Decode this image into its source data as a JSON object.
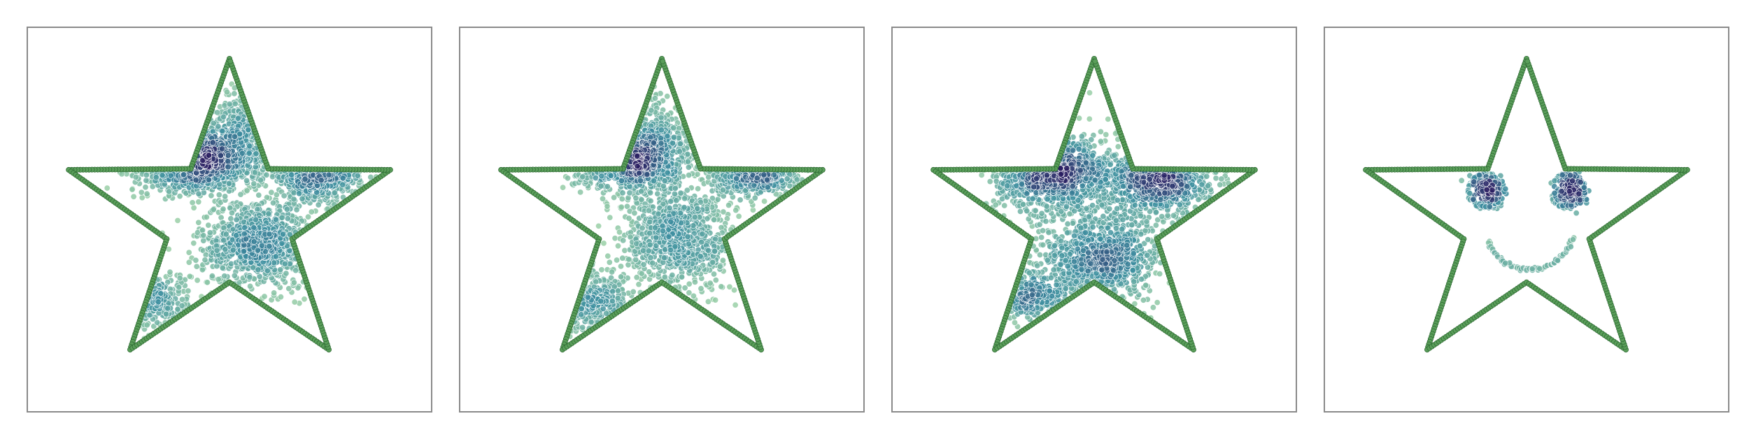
{
  "colors": {
    "outline_fill": "#5a9e5a",
    "outline_stroke": "#2f6b34",
    "frame": "#8a8a8a",
    "density_low": "#9fd3a7",
    "density_mid": "#3d8fa0",
    "density_high": "#2a1f62"
  },
  "chart_data": [
    {
      "type": "scatter",
      "title": "",
      "xlabel": "",
      "ylabel": "",
      "xlim": [
        -1.2,
        1.2
      ],
      "ylim": [
        -1.2,
        1.2
      ],
      "grid": false,
      "outline": "star",
      "clusters": [
        {
          "cx": -0.22,
          "cy": 0.38,
          "sx": 0.17,
          "sy": 0.1,
          "n": 900
        },
        {
          "cx": 0.18,
          "cy": -0.15,
          "sx": 0.18,
          "sy": 0.14,
          "n": 850
        },
        {
          "cx": 0.52,
          "cy": 0.3,
          "sx": 0.15,
          "sy": 0.09,
          "n": 450
        },
        {
          "cx": -0.48,
          "cy": -0.5,
          "sx": 0.12,
          "sy": 0.09,
          "n": 200
        },
        {
          "cx": 0.1,
          "cy": 0.55,
          "sx": 0.1,
          "sy": 0.16,
          "n": 250
        }
      ]
    },
    {
      "type": "scatter",
      "title": "",
      "xlabel": "",
      "ylabel": "",
      "xlim": [
        -1.2,
        1.2
      ],
      "ylim": [
        -1.2,
        1.2
      ],
      "grid": false,
      "outline": "star",
      "clusters": [
        {
          "cx": -0.22,
          "cy": 0.38,
          "sx": 0.15,
          "sy": 0.09,
          "n": 750
        },
        {
          "cx": 0.1,
          "cy": -0.12,
          "sx": 0.17,
          "sy": 0.17,
          "n": 850
        },
        {
          "cx": 0.55,
          "cy": 0.32,
          "sx": 0.12,
          "sy": 0.08,
          "n": 400
        },
        {
          "cx": -0.45,
          "cy": -0.5,
          "sx": 0.16,
          "sy": 0.1,
          "n": 300
        },
        {
          "cx": 0.0,
          "cy": 0.48,
          "sx": 0.14,
          "sy": 0.15,
          "n": 300
        }
      ]
    },
    {
      "type": "scatter",
      "title": "",
      "xlabel": "",
      "ylabel": "",
      "xlim": [
        -1.2,
        1.2
      ],
      "ylim": [
        -1.2,
        1.2
      ],
      "grid": false,
      "outline": "star",
      "clusters": [
        {
          "cx": -0.25,
          "cy": 0.3,
          "sx": 0.16,
          "sy": 0.1,
          "n": 700
        },
        {
          "cx": 0.4,
          "cy": 0.25,
          "sx": 0.15,
          "sy": 0.1,
          "n": 650
        },
        {
          "cx": 0.05,
          "cy": -0.25,
          "sx": 0.18,
          "sy": 0.12,
          "n": 650
        },
        {
          "cx": -0.38,
          "cy": -0.48,
          "sx": 0.15,
          "sy": 0.07,
          "n": 250
        },
        {
          "cx": 0.0,
          "cy": 0.1,
          "sx": 0.28,
          "sy": 0.25,
          "n": 450
        }
      ]
    },
    {
      "type": "scatter",
      "title": "",
      "xlabel": "",
      "ylabel": "",
      "xlim": [
        -1.2,
        1.2
      ],
      "ylim": [
        -1.2,
        1.2
      ],
      "grid": false,
      "outline": "star",
      "clusters": [
        {
          "cx": -0.22,
          "cy": 0.18,
          "sx": 0.045,
          "sy": 0.045,
          "n": 160
        },
        {
          "cx": 0.26,
          "cy": 0.18,
          "sx": 0.045,
          "sy": 0.045,
          "n": 160
        }
      ],
      "arcs": [
        {
          "cx": -0.24,
          "cy": 0.18,
          "r": 0.1,
          "start_deg": 40,
          "end_deg": 330,
          "n": 60
        },
        {
          "cx": 0.24,
          "cy": 0.18,
          "r": 0.1,
          "start_deg": -150,
          "end_deg": 140,
          "n": 60
        },
        {
          "cx": 0.02,
          "cy": -0.05,
          "r": 0.26,
          "start_deg": 200,
          "end_deg": 345,
          "n": 70
        }
      ]
    }
  ]
}
